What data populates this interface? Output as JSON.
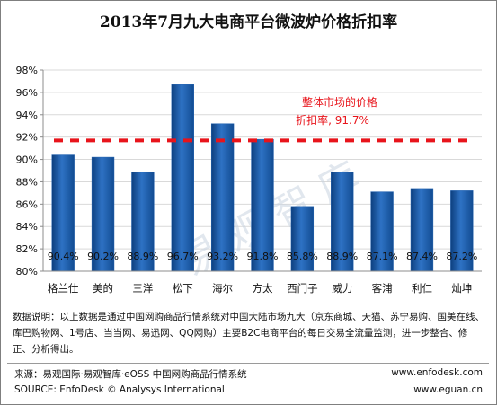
{
  "title": "2013年7月九大电商平台微波炉价格折扣率",
  "watermark": "易观智库",
  "chart_data": {
    "type": "bar",
    "categories": [
      "格兰仕",
      "美的",
      "三洋",
      "松下",
      "海尔",
      "方太",
      "西门子",
      "威力",
      "客浦",
      "利仁",
      "灿坤"
    ],
    "values": [
      90.4,
      90.2,
      88.9,
      96.7,
      93.2,
      91.8,
      85.8,
      88.9,
      87.1,
      87.4,
      87.2
    ],
    "value_labels": [
      "90.4%",
      "90.2%",
      "88.9%",
      "96.7%",
      "93.2%",
      "91.8%",
      "85.8%",
      "88.9%",
      "87.1%",
      "87.4%",
      "87.2%"
    ],
    "ylim": [
      80,
      98
    ],
    "yticks": [
      80,
      82,
      84,
      86,
      88,
      90,
      92,
      94,
      96,
      98
    ],
    "ytick_labels": [
      "80%",
      "82%",
      "84%",
      "86%",
      "88%",
      "90%",
      "92%",
      "94%",
      "96%",
      "98%"
    ],
    "reference_line": {
      "value": 91.7,
      "label_line1": "整体市场的价格",
      "label_line2": "折扣率, 91.7%",
      "color": "#e8141b"
    },
    "bar_color": "#1f5fae",
    "grid": true
  },
  "notes": "数据说明：以上数据是通过中国网购商品行情系统对中国大陆市场九大（京东商城、天猫、苏宁易购、国美在线、库巴购物网、1号店、当当网、易迅网、QQ网购）主要B2C电商平台的每日交易全流量监测，进一步整合、修正、分析得出。",
  "footer": {
    "source_cn": "来源：易观国际·易观智库·eOSS 中国网购商品行情系统",
    "source_en": "SOURCE: EnfoDesk © Analysys International",
    "url1": "www.enfodesk.com",
    "url2": "www.eguan.cn"
  }
}
